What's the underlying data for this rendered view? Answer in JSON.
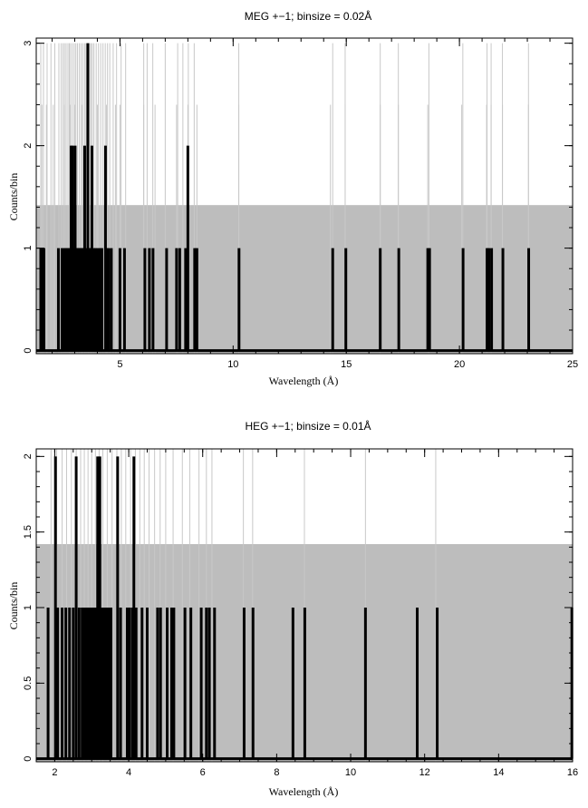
{
  "chart_data": [
    {
      "type": "bar",
      "title": "MEG +−1; binsize = 0.02Å",
      "xlabel": "Wavelength (Å)",
      "ylabel": "Counts/bin",
      "xlim": [
        1.3,
        25
      ],
      "ylim": [
        -0.03,
        3.05
      ],
      "xticks": [
        5,
        10,
        15,
        20,
        25
      ],
      "xtick_labels": [
        "5",
        "10",
        "15",
        "20",
        "25"
      ],
      "yticks": [
        0,
        1,
        2,
        3
      ],
      "ytick_labels": [
        "0",
        "1",
        "2",
        "3"
      ],
      "x_minor_step": 1,
      "y_minor_step": 0.2,
      "background_level": 1.42,
      "band_color": "#bdbdbd",
      "line_color": "#000000",
      "faint_line_color": "#c8c8c8",
      "faint_line_top": 3.0,
      "faint_lines": [
        1.5,
        1.62,
        1.78,
        1.95,
        2.12,
        2.3,
        2.4,
        2.48,
        2.55,
        2.62,
        2.7,
        2.76,
        2.82,
        2.9,
        2.98,
        3.05,
        3.12,
        3.2,
        3.28,
        3.36,
        3.44,
        3.5,
        3.58,
        3.66,
        3.72,
        3.78,
        3.85,
        3.95,
        4.05,
        4.15,
        4.25,
        4.35,
        4.45,
        4.55,
        4.7,
        4.85,
        5.05,
        5.25,
        6.05,
        6.2,
        6.45,
        7.0,
        7.55,
        7.78,
        8.02,
        8.28,
        10.25,
        14.4,
        14.95,
        16.5,
        17.3,
        18.65,
        20.15,
        21.22,
        21.4,
        21.9,
        23.05
      ],
      "grey_line_top": 2.4,
      "grey_lines": [
        1.55,
        1.75,
        2.05,
        2.3,
        2.55,
        2.8,
        3.0,
        3.3,
        3.6,
        4.0,
        4.4,
        4.8,
        5.0,
        6.05,
        6.55,
        7.5,
        8.0,
        8.4,
        10.25,
        14.3,
        14.95,
        16.5,
        17.3,
        18.6,
        20.1,
        21.2,
        21.4,
        21.9,
        23.05
      ],
      "series": [
        {
          "counts": [
            {
              "x": 1.5,
              "y": 1
            },
            {
              "x": 1.56,
              "y": 1
            },
            {
              "x": 1.64,
              "y": 1
            },
            {
              "x": 2.28,
              "y": 1
            },
            {
              "x": 2.44,
              "y": 1
            },
            {
              "x": 2.54,
              "y": 1
            },
            {
              "x": 2.62,
              "y": 1
            },
            {
              "x": 2.7,
              "y": 1
            },
            {
              "x": 2.78,
              "y": 1
            },
            {
              "x": 2.84,
              "y": 2
            },
            {
              "x": 2.9,
              "y": 2
            },
            {
              "x": 2.96,
              "y": 1
            },
            {
              "x": 3.02,
              "y": 2
            },
            {
              "x": 3.08,
              "y": 1
            },
            {
              "x": 3.14,
              "y": 1
            },
            {
              "x": 3.2,
              "y": 1
            },
            {
              "x": 3.26,
              "y": 1
            },
            {
              "x": 3.32,
              "y": 1
            },
            {
              "x": 3.38,
              "y": 1
            },
            {
              "x": 3.44,
              "y": 2
            },
            {
              "x": 3.5,
              "y": 1
            },
            {
              "x": 3.58,
              "y": 3
            },
            {
              "x": 3.64,
              "y": 1
            },
            {
              "x": 3.7,
              "y": 1
            },
            {
              "x": 3.76,
              "y": 2
            },
            {
              "x": 3.84,
              "y": 1
            },
            {
              "x": 3.92,
              "y": 1
            },
            {
              "x": 4.02,
              "y": 1
            },
            {
              "x": 4.12,
              "y": 1
            },
            {
              "x": 4.2,
              "y": 1
            },
            {
              "x": 4.36,
              "y": 2
            },
            {
              "x": 4.42,
              "y": 1
            },
            {
              "x": 4.5,
              "y": 1
            },
            {
              "x": 4.62,
              "y": 1
            },
            {
              "x": 5.0,
              "y": 1
            },
            {
              "x": 5.2,
              "y": 1
            },
            {
              "x": 6.1,
              "y": 1
            },
            {
              "x": 6.3,
              "y": 1
            },
            {
              "x": 6.46,
              "y": 1
            },
            {
              "x": 7.06,
              "y": 1
            },
            {
              "x": 7.5,
              "y": 1
            },
            {
              "x": 7.64,
              "y": 1
            },
            {
              "x": 7.9,
              "y": 1
            },
            {
              "x": 8.0,
              "y": 2
            },
            {
              "x": 8.3,
              "y": 1
            },
            {
              "x": 8.4,
              "y": 1
            },
            {
              "x": 10.26,
              "y": 1
            },
            {
              "x": 14.4,
              "y": 1
            },
            {
              "x": 14.98,
              "y": 1
            },
            {
              "x": 16.5,
              "y": 1
            },
            {
              "x": 17.32,
              "y": 1
            },
            {
              "x": 18.6,
              "y": 1
            },
            {
              "x": 18.68,
              "y": 1
            },
            {
              "x": 20.16,
              "y": 1
            },
            {
              "x": 21.22,
              "y": 1
            },
            {
              "x": 21.3,
              "y": 1
            },
            {
              "x": 21.42,
              "y": 1
            },
            {
              "x": 21.92,
              "y": 1
            },
            {
              "x": 23.06,
              "y": 1
            }
          ]
        }
      ]
    },
    {
      "type": "bar",
      "title": "HEG +−1; binsize = 0.01Å",
      "xlabel": "Wavelength (Å)",
      "ylabel": "Counts/bin",
      "xlim": [
        1.5,
        16
      ],
      "ylim": [
        -0.02,
        2.05
      ],
      "xticks": [
        2,
        4,
        6,
        8,
        10,
        12,
        14,
        16
      ],
      "xtick_labels": [
        "2",
        "4",
        "6",
        "8",
        "10",
        "12",
        "14",
        "16"
      ],
      "yticks": [
        0,
        0.5,
        1,
        1.5,
        2
      ],
      "ytick_labels": [
        "0",
        "0.5",
        "1",
        "1.5",
        "2"
      ],
      "x_minor_step": 0.5,
      "y_minor_step": 0.1,
      "background_level": 1.42,
      "band_color": "#bdbdbd",
      "line_color": "#000000",
      "faint_line_color": "#c8c8c8",
      "faint_line_top": 2.05,
      "faint_lines": [
        1.9,
        2.05,
        2.2,
        2.32,
        2.45,
        2.58,
        2.7,
        2.8,
        2.9,
        3.0,
        3.1,
        3.2,
        3.3,
        3.42,
        3.55,
        3.68,
        3.8,
        3.92,
        4.05,
        4.18,
        4.3,
        4.42,
        4.55,
        4.7,
        4.85,
        5.0,
        5.2,
        5.45,
        5.65,
        5.9,
        6.1,
        6.25,
        7.1,
        7.35,
        8.75,
        10.4,
        12.3
      ],
      "series": [
        {
          "counts": [
            {
              "x": 1.82,
              "y": 1
            },
            {
              "x": 2.02,
              "y": 2
            },
            {
              "x": 2.08,
              "y": 1
            },
            {
              "x": 2.2,
              "y": 1
            },
            {
              "x": 2.3,
              "y": 1
            },
            {
              "x": 2.4,
              "y": 1
            },
            {
              "x": 2.5,
              "y": 1
            },
            {
              "x": 2.58,
              "y": 2
            },
            {
              "x": 2.66,
              "y": 1
            },
            {
              "x": 2.74,
              "y": 1
            },
            {
              "x": 2.8,
              "y": 1
            },
            {
              "x": 2.86,
              "y": 1
            },
            {
              "x": 2.92,
              "y": 1
            },
            {
              "x": 2.98,
              "y": 1
            },
            {
              "x": 3.04,
              "y": 1
            },
            {
              "x": 3.1,
              "y": 1
            },
            {
              "x": 3.16,
              "y": 2
            },
            {
              "x": 3.22,
              "y": 2
            },
            {
              "x": 3.28,
              "y": 1
            },
            {
              "x": 3.34,
              "y": 1
            },
            {
              "x": 3.4,
              "y": 1
            },
            {
              "x": 3.46,
              "y": 1
            },
            {
              "x": 3.52,
              "y": 1
            },
            {
              "x": 3.7,
              "y": 2
            },
            {
              "x": 3.78,
              "y": 1
            },
            {
              "x": 3.96,
              "y": 1
            },
            {
              "x": 4.02,
              "y": 1
            },
            {
              "x": 4.1,
              "y": 1
            },
            {
              "x": 4.14,
              "y": 2
            },
            {
              "x": 4.2,
              "y": 1
            },
            {
              "x": 4.36,
              "y": 1
            },
            {
              "x": 4.5,
              "y": 1
            },
            {
              "x": 4.78,
              "y": 1
            },
            {
              "x": 4.86,
              "y": 1
            },
            {
              "x": 5.04,
              "y": 1
            },
            {
              "x": 5.16,
              "y": 1
            },
            {
              "x": 5.22,
              "y": 1
            },
            {
              "x": 5.52,
              "y": 1
            },
            {
              "x": 5.68,
              "y": 1
            },
            {
              "x": 5.96,
              "y": 1
            },
            {
              "x": 6.1,
              "y": 1
            },
            {
              "x": 6.18,
              "y": 1
            },
            {
              "x": 6.32,
              "y": 1
            },
            {
              "x": 7.12,
              "y": 1
            },
            {
              "x": 7.36,
              "y": 1
            },
            {
              "x": 8.44,
              "y": 1
            },
            {
              "x": 8.76,
              "y": 1
            },
            {
              "x": 10.4,
              "y": 1
            },
            {
              "x": 11.8,
              "y": 1
            },
            {
              "x": 12.34,
              "y": 1
            },
            {
              "x": 15.98,
              "y": 1
            }
          ]
        }
      ]
    }
  ]
}
